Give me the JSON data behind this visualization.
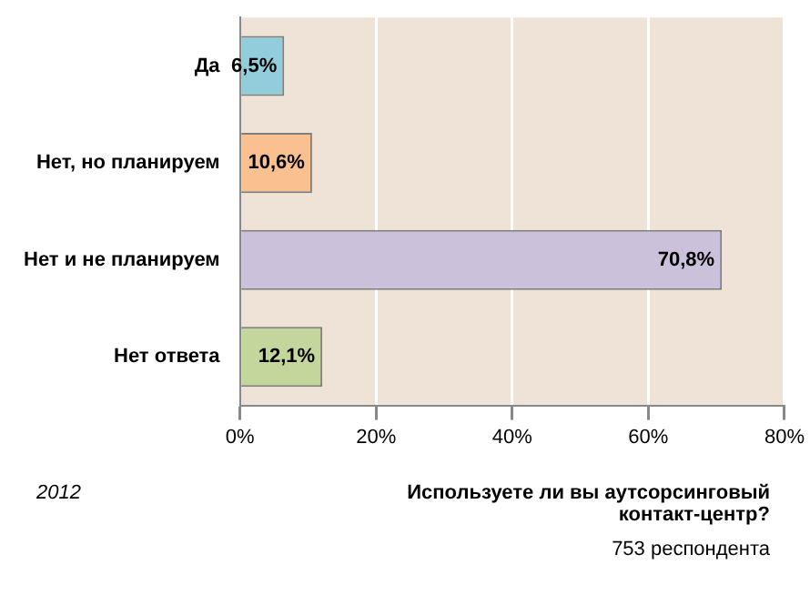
{
  "chart_data": {
    "type": "bar",
    "orientation": "horizontal",
    "title": "Используете ли вы аутсорсинговый контакт-центр?",
    "subtitle": "753 респондента",
    "categories": [
      "Да",
      "Нет, но планируем",
      "Нет и не планируем",
      "Нет ответа"
    ],
    "values": [
      6.5,
      10.6,
      70.8,
      12.1
    ],
    "colors": [
      "#92cddc",
      "#fac090",
      "#ccc1da",
      "#c3d69b"
    ],
    "value_labels": [
      "6,5%",
      "10,6%",
      "70,8%",
      "12,1%"
    ],
    "xlim": [
      0,
      80
    ],
    "xticks": [
      {
        "value": 0,
        "label": "0%"
      },
      {
        "value": 20,
        "label": "20%"
      },
      {
        "value": 40,
        "label": "40%"
      },
      {
        "value": 60,
        "label": "60%"
      },
      {
        "value": 80,
        "label": "80%"
      }
    ],
    "grid": "x",
    "legend": false,
    "annotations": [
      "2012"
    ]
  }
}
